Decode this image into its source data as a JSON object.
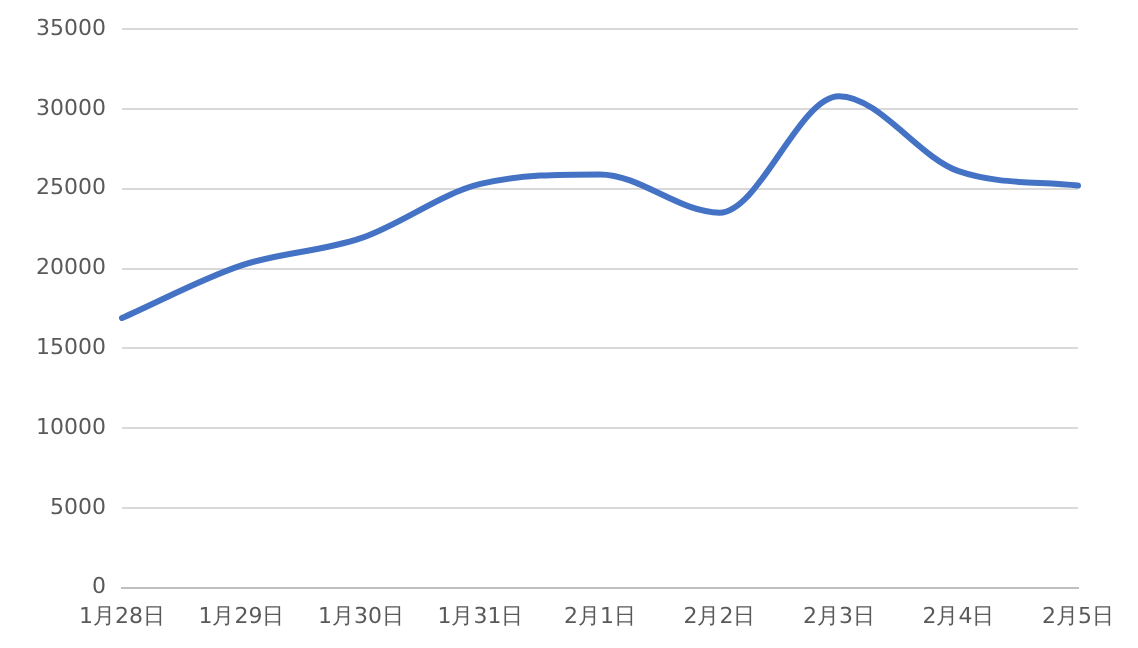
{
  "chart_data": {
    "type": "line",
    "categories": [
      "1月28日",
      "1月29日",
      "1月30日",
      "1月31日",
      "2月1日",
      "2月2日",
      "2月3日",
      "2月4日",
      "2月5日"
    ],
    "series": [
      {
        "color": "#4472c4",
        "values": [
          16900,
          20200,
          21900,
          25300,
          25900,
          23500,
          30800,
          26100,
          25200
        ]
      }
    ],
    "ylim": [
      0,
      35000
    ],
    "yticks": [
      0,
      5000,
      10000,
      15000,
      20000,
      25000,
      30000,
      35000
    ],
    "grid": "y",
    "legend": false,
    "marker": "none",
    "line_style": "solid"
  }
}
